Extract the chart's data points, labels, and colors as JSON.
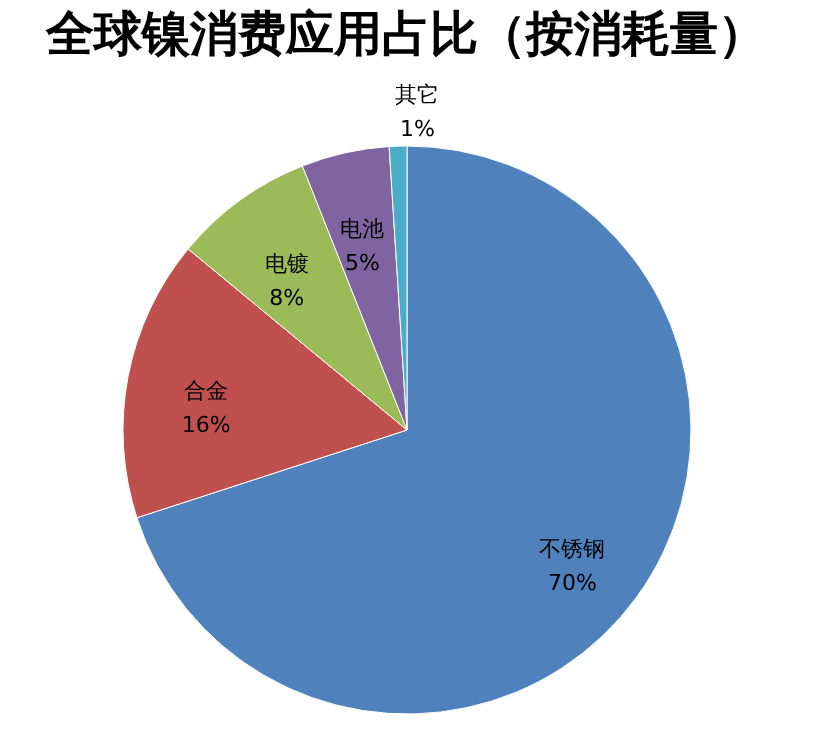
{
  "chart_data": {
    "type": "pie",
    "title": "全球镍消费应用占比（按消耗量）",
    "categories": [
      "不锈钢",
      "合金",
      "电镀",
      "电池",
      "其它"
    ],
    "values": [
      70,
      16,
      8,
      5,
      1
    ],
    "value_labels": [
      "70%",
      "16%",
      "8%",
      "5%",
      "1%"
    ],
    "colors": [
      "#4f81bd",
      "#c0504d",
      "#9bbb59",
      "#8064a2",
      "#4bacc6"
    ]
  }
}
